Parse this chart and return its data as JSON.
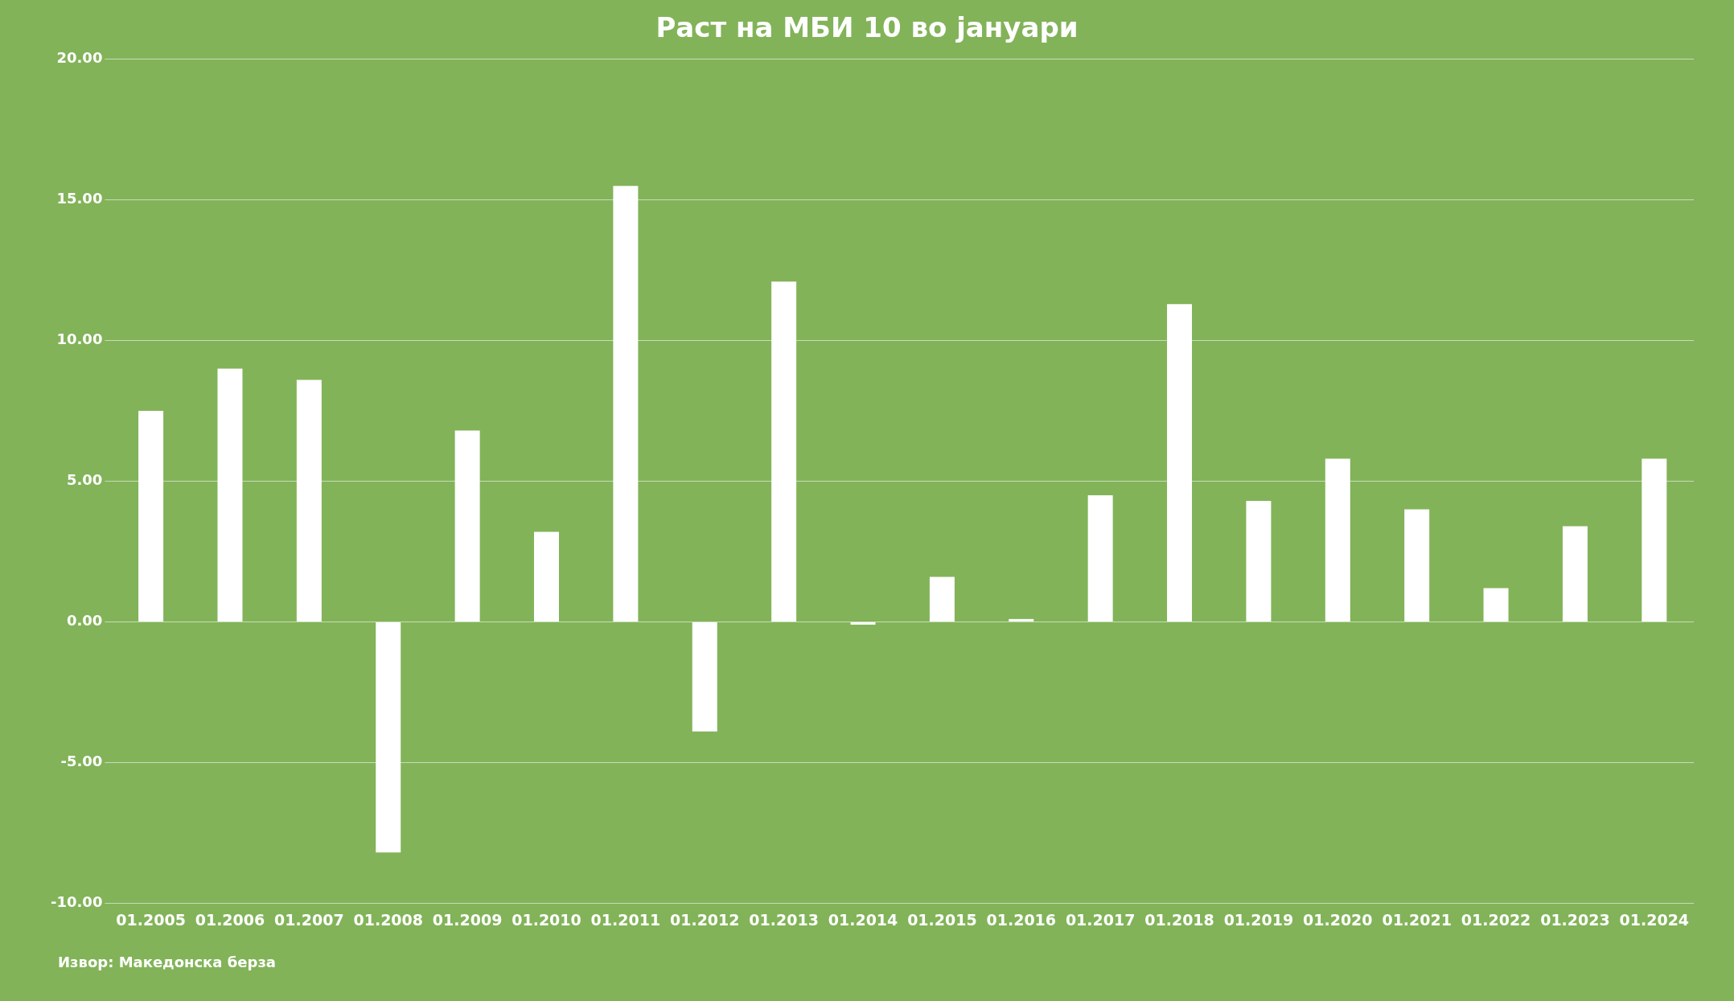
{
  "chart_data": {
    "type": "bar",
    "title": "Раст на МБИ 10 во јануари",
    "categories": [
      "01.2005",
      "01.2006",
      "01.2007",
      "01.2008",
      "01.2009",
      "01.2010",
      "01.2011",
      "01.2012",
      "01.2013",
      "01.2014",
      "01.2015",
      "01.2016",
      "01.2017",
      "01.2018",
      "01.2019",
      "01.2020",
      "01.2021",
      "01.2022",
      "01.2023",
      "01.2024"
    ],
    "values": [
      7.5,
      9.0,
      8.6,
      -8.2,
      6.8,
      3.2,
      15.5,
      -3.9,
      12.1,
      -0.1,
      1.6,
      0.1,
      4.5,
      11.3,
      4.3,
      5.8,
      4.0,
      1.2,
      3.4,
      5.8
    ],
    "color": "#ffffff",
    "ylim": [
      -10,
      20
    ],
    "yticks": [
      {
        "value": -10,
        "label": "-10.00"
      },
      {
        "value": -5,
        "label": "-5.00"
      },
      {
        "value": 0,
        "label": "0.00"
      },
      {
        "value": 5,
        "label": "5.00"
      },
      {
        "value": 10,
        "label": "10.00"
      },
      {
        "value": 15,
        "label": "15.00"
      },
      {
        "value": 20,
        "label": "20.00"
      }
    ],
    "grid": "y",
    "annotations": [
      "Извор: Македонска берза"
    ]
  }
}
